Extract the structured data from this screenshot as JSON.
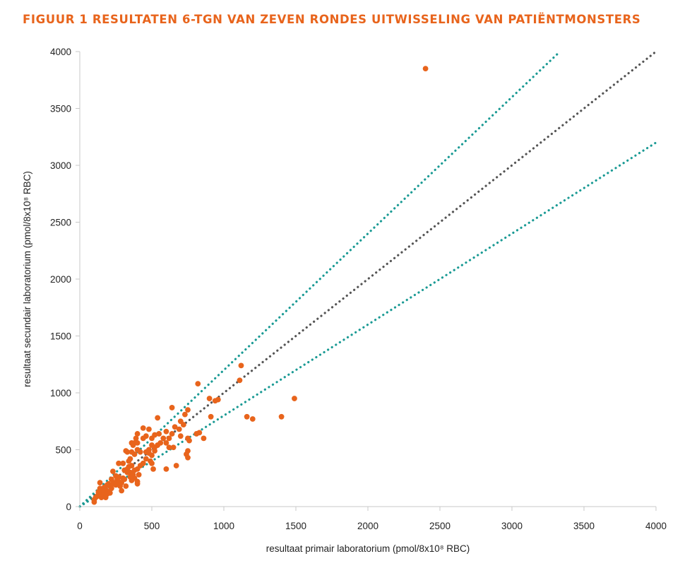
{
  "chart_data": {
    "type": "scatter",
    "title": "FIGUUR 1  RESULTATEN 6-TGN VAN ZEVEN RONDES UITWISSELING VAN PATIËNTMONSTERS",
    "xlabel": "resultaat primair laboratorium (pmol/8x10⁸ RBC)",
    "ylabel": "resultaat secundair laboratorium (pmol/8x10⁸ RBC)",
    "xlim": [
      0,
      4000
    ],
    "ylim": [
      0,
      4000
    ],
    "xticks": [
      0,
      500,
      1000,
      1500,
      2000,
      2500,
      3000,
      3500,
      4000
    ],
    "yticks": [
      0,
      500,
      1000,
      1500,
      2000,
      2500,
      3000,
      3500,
      4000
    ],
    "grid": false,
    "reference_lines": [
      {
        "type": "identity",
        "slope": 1.0,
        "color": "#555555"
      },
      {
        "type": "upper_limit",
        "slope": 1.2,
        "color": "#1a9a94"
      },
      {
        "type": "lower_limit",
        "slope": 0.8,
        "color": "#1a9a94"
      }
    ],
    "marker_color": "#e8641c",
    "points": [
      [
        2400,
        3850
      ],
      [
        1120,
        1240
      ],
      [
        1110,
        1110
      ],
      [
        820,
        1080
      ],
      [
        1490,
        950
      ],
      [
        960,
        940
      ],
      [
        900,
        950
      ],
      [
        940,
        930
      ],
      [
        1160,
        790
      ],
      [
        1200,
        770
      ],
      [
        1400,
        790
      ],
      [
        910,
        790
      ],
      [
        640,
        870
      ],
      [
        750,
        850
      ],
      [
        730,
        810
      ],
      [
        700,
        750
      ],
      [
        720,
        720
      ],
      [
        660,
        700
      ],
      [
        690,
        680
      ],
      [
        640,
        640
      ],
      [
        620,
        600
      ],
      [
        700,
        620
      ],
      [
        750,
        600
      ],
      [
        760,
        580
      ],
      [
        810,
        640
      ],
      [
        860,
        600
      ],
      [
        830,
        650
      ],
      [
        540,
        780
      ],
      [
        600,
        660
      ],
      [
        580,
        600
      ],
      [
        560,
        560
      ],
      [
        520,
        520
      ],
      [
        500,
        540
      ],
      [
        480,
        500
      ],
      [
        550,
        640
      ],
      [
        520,
        630
      ],
      [
        500,
        600
      ],
      [
        460,
        620
      ],
      [
        440,
        600
      ],
      [
        440,
        690
      ],
      [
        480,
        680
      ],
      [
        540,
        540
      ],
      [
        600,
        560
      ],
      [
        620,
        520
      ],
      [
        650,
        520
      ],
      [
        520,
        490
      ],
      [
        500,
        450
      ],
      [
        480,
        470
      ],
      [
        460,
        480
      ],
      [
        460,
        420
      ],
      [
        490,
        400
      ],
      [
        500,
        380
      ],
      [
        510,
        330
      ],
      [
        440,
        380
      ],
      [
        420,
        360
      ],
      [
        400,
        640
      ],
      [
        390,
        600
      ],
      [
        380,
        560
      ],
      [
        370,
        540
      ],
      [
        360,
        560
      ],
      [
        400,
        560
      ],
      [
        420,
        480
      ],
      [
        400,
        500
      ],
      [
        380,
        460
      ],
      [
        360,
        480
      ],
      [
        350,
        420
      ],
      [
        340,
        400
      ],
      [
        360,
        360
      ],
      [
        340,
        350
      ],
      [
        330,
        330
      ],
      [
        350,
        300
      ],
      [
        380,
        320
      ],
      [
        400,
        330
      ],
      [
        410,
        280
      ],
      [
        380,
        250
      ],
      [
        400,
        220
      ],
      [
        400,
        200
      ],
      [
        360,
        230
      ],
      [
        330,
        300
      ],
      [
        310,
        320
      ],
      [
        300,
        380
      ],
      [
        330,
        480
      ],
      [
        320,
        490
      ],
      [
        600,
        330
      ],
      [
        670,
        360
      ],
      [
        750,
        430
      ],
      [
        750,
        490
      ],
      [
        740,
        460
      ],
      [
        300,
        250
      ],
      [
        290,
        210
      ],
      [
        280,
        180
      ],
      [
        270,
        260
      ],
      [
        260,
        240
      ],
      [
        250,
        270
      ],
      [
        240,
        210
      ],
      [
        230,
        310
      ],
      [
        220,
        240
      ],
      [
        220,
        160
      ],
      [
        200,
        200
      ],
      [
        200,
        130
      ],
      [
        190,
        110
      ],
      [
        180,
        150
      ],
      [
        170,
        170
      ],
      [
        160,
        130
      ],
      [
        160,
        100
      ],
      [
        150,
        80
      ],
      [
        140,
        210
      ],
      [
        140,
        160
      ],
      [
        130,
        120
      ],
      [
        120,
        90
      ],
      [
        100,
        60
      ],
      [
        100,
        40
      ],
      [
        110,
        80
      ],
      [
        180,
        80
      ],
      [
        210,
        120
      ],
      [
        250,
        190
      ],
      [
        270,
        380
      ],
      [
        290,
        140
      ],
      [
        310,
        240
      ],
      [
        350,
        260
      ],
      [
        370,
        280
      ],
      [
        230,
        200
      ],
      [
        210,
        180
      ],
      [
        270,
        220
      ],
      [
        320,
        180
      ],
      [
        190,
        190
      ],
      [
        160,
        140
      ],
      [
        130,
        130
      ]
    ]
  }
}
